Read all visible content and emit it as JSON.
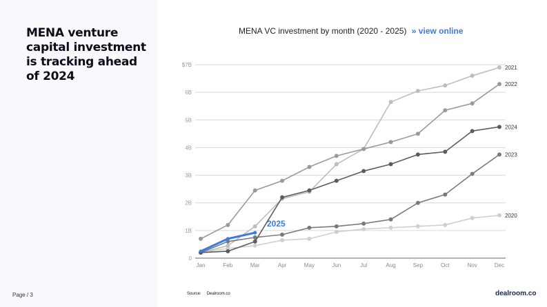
{
  "headline": "MENA venture capital investment is tracking ahead of 2024",
  "page": "Page / 3",
  "chart_title": "MENA VC investment by month (2020 - 2025)",
  "chart_link": "» view online",
  "source_label": "Source:",
  "source_value": "Dealroom.co",
  "brand": "dealroom.co",
  "colors": {
    "accent": "#3b7ae0",
    "s2020": "#cfcfcf",
    "s2021": "#bdbdbd",
    "s2022": "#999999",
    "s2023": "#7a7a7a",
    "s2024": "#5c5c5c"
  },
  "chart_data": {
    "type": "line",
    "title": "MENA VC investment by month (2020 - 2025)",
    "xlabel": "",
    "ylabel": "",
    "categories": [
      "Jan",
      "Feb",
      "Mar",
      "Apr",
      "May",
      "Jun",
      "Jul",
      "Aug",
      "Sep",
      "Oct",
      "Nov",
      "Dec"
    ],
    "y_ticks": [
      "0",
      "1B",
      "2B",
      "3B",
      "4B",
      "5B",
      "6B",
      "$7B"
    ],
    "ylim": [
      0,
      7
    ],
    "grid": true,
    "legend_position": "end-of-line labels",
    "annotations": [
      "2025"
    ],
    "series": [
      {
        "name": "2020",
        "values": [
          0.2,
          0.35,
          0.45,
          0.65,
          0.7,
          0.95,
          1.05,
          1.1,
          1.15,
          1.2,
          1.45,
          1.55
        ]
      },
      {
        "name": "2021",
        "values": [
          0.2,
          0.45,
          1.15,
          2.15,
          2.4,
          3.4,
          3.95,
          5.65,
          6.05,
          6.25,
          6.6,
          6.9
        ]
      },
      {
        "name": "2022",
        "values": [
          0.7,
          1.2,
          2.45,
          2.8,
          3.3,
          3.7,
          3.95,
          4.2,
          4.5,
          5.35,
          5.6,
          6.3
        ]
      },
      {
        "name": "2023",
        "values": [
          0.2,
          0.6,
          0.75,
          0.85,
          1.1,
          1.15,
          1.25,
          1.4,
          2.0,
          2.3,
          3.05,
          3.75
        ]
      },
      {
        "name": "2024",
        "values": [
          0.2,
          0.25,
          0.6,
          2.2,
          2.45,
          2.8,
          3.15,
          3.4,
          3.75,
          3.85,
          4.6,
          4.75
        ]
      },
      {
        "name": "2025",
        "values": [
          0.25,
          0.7,
          0.92
        ]
      }
    ]
  }
}
